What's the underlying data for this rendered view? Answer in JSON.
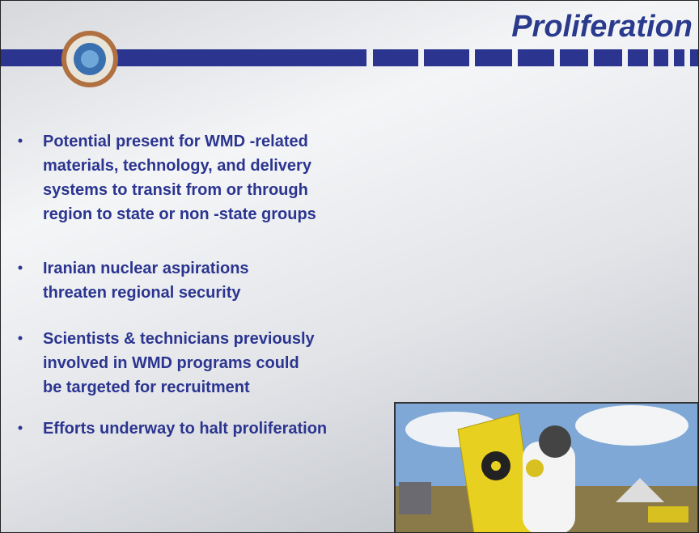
{
  "header": {
    "title": "Proliferation"
  },
  "bullets": [
    [
      "Potential present for WMD  -related",
      "materials, technology, and delivery",
      "systems to transit from or through",
      "region to state or non  -state groups"
    ],
    [
      "Iranian nuclear aspirations",
      "threaten regional security"
    ],
    [
      "Scientists & technicians previously",
      "involved in WMD programs could",
      "be targeted for recruitment"
    ],
    [
      "Efforts underway to halt proliferation"
    ]
  ]
}
